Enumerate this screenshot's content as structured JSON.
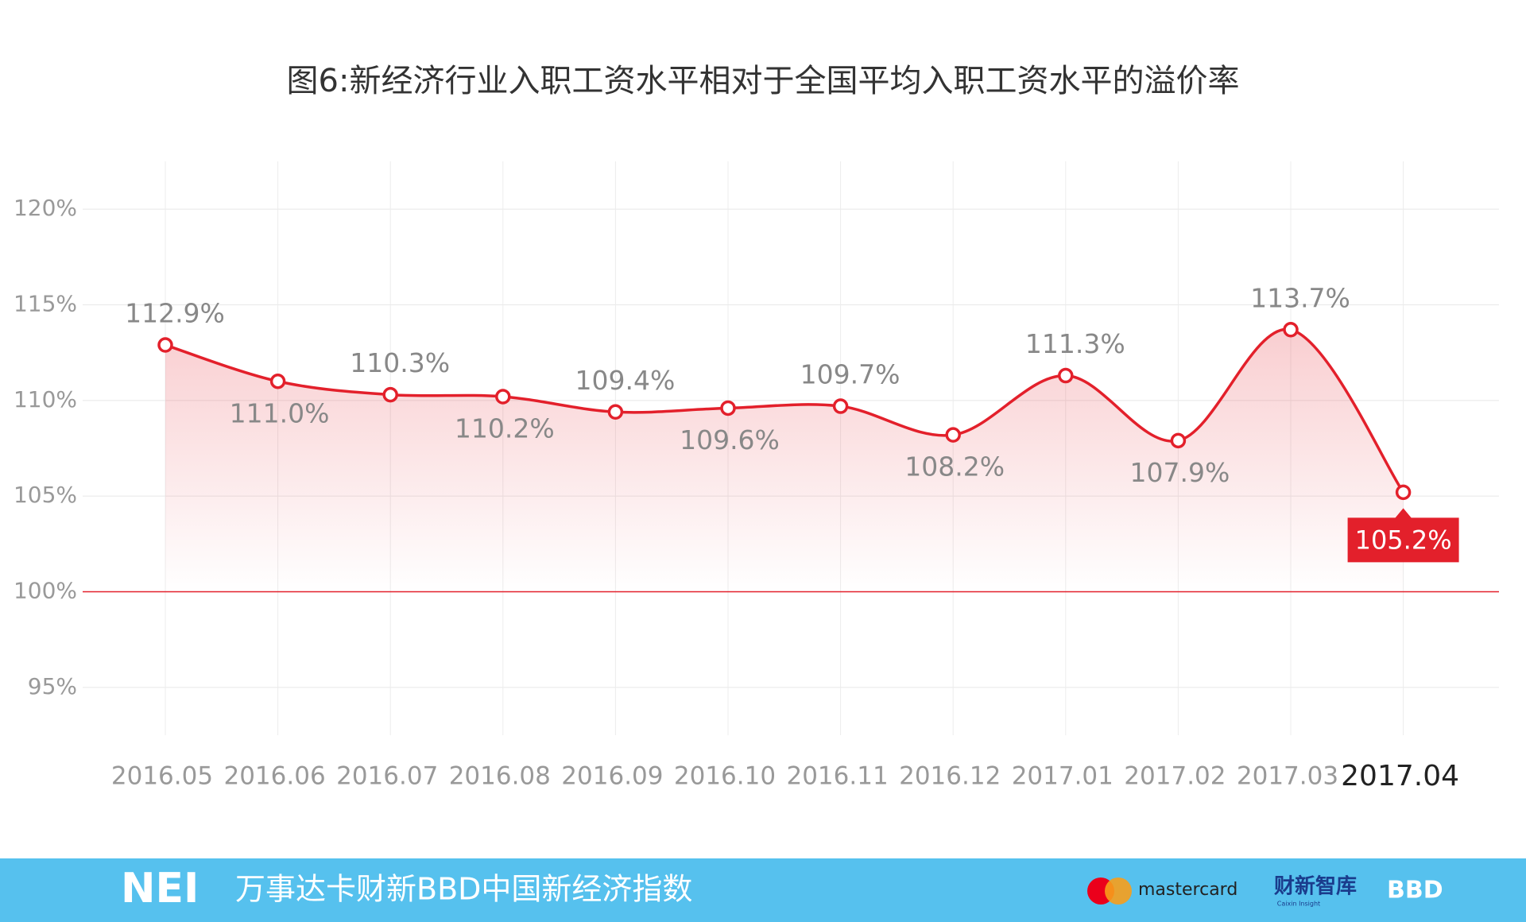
{
  "chart_data": {
    "type": "line",
    "title": "图6:新经济行业入职工资水平相对于全国平均入职工资水平的溢价率",
    "categories": [
      "2016.05",
      "2016.06",
      "2016.07",
      "2016.08",
      "2016.09",
      "2016.10",
      "2016.11",
      "2016.12",
      "2017.01",
      "2017.02",
      "2017.03",
      "2017.04"
    ],
    "values": [
      112.9,
      111.0,
      110.3,
      110.2,
      109.4,
      109.6,
      109.7,
      108.2,
      111.3,
      107.9,
      113.7,
      105.2
    ],
    "value_labels": [
      "112.9%",
      "111.0%",
      "110.3%",
      "110.2%",
      "109.4%",
      "109.6%",
      "109.7%",
      "108.2%",
      "111.3%",
      "107.9%",
      "113.7%",
      "105.2%"
    ],
    "color": "#e3202b",
    "ylim": [
      92.5,
      122.5
    ],
    "yticks": [
      {
        "value": 95,
        "label": "95%"
      },
      {
        "value": 100,
        "label": "100%"
      },
      {
        "value": 105,
        "label": "105%"
      },
      {
        "value": 110,
        "label": "110%"
      },
      {
        "value": 115,
        "label": "115%"
      },
      {
        "value": 120,
        "label": "120%"
      }
    ],
    "reference_line": 100,
    "grid": true
  },
  "footer": {
    "logo": "NEI",
    "text": "万事达卡财新BBD中国新经济指数",
    "brands": [
      "mastercard",
      "财新智库",
      "Caixin Insight",
      "BBD"
    ]
  }
}
